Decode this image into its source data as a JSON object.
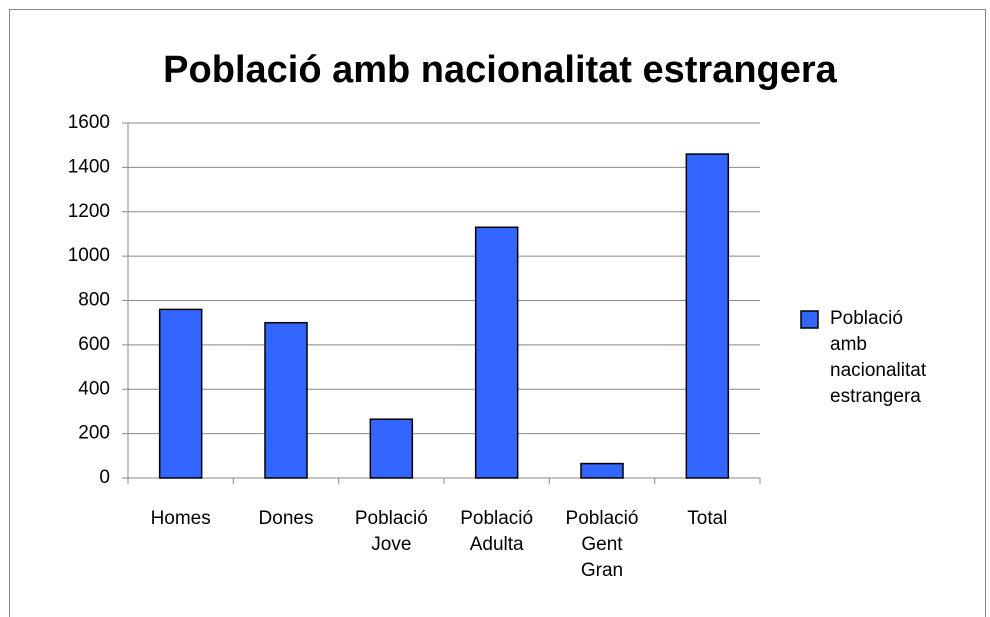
{
  "chart_data": {
    "type": "bar",
    "title": "Població amb nacionalitat estrangera",
    "categories": [
      "Homes",
      "Dones",
      "Població Jove",
      "Població Adulta",
      "Població Gent Gran",
      "Total"
    ],
    "series": [
      {
        "name": "Població amb nacionalitat estrangera",
        "color": "#3366ff",
        "values": [
          760,
          700,
          265,
          1130,
          65,
          1460
        ]
      }
    ],
    "ylim": [
      0,
      1600
    ],
    "yticks": [
      0,
      200,
      400,
      600,
      800,
      1000,
      1200,
      1400,
      1600
    ],
    "grid": true,
    "legend": "right"
  }
}
